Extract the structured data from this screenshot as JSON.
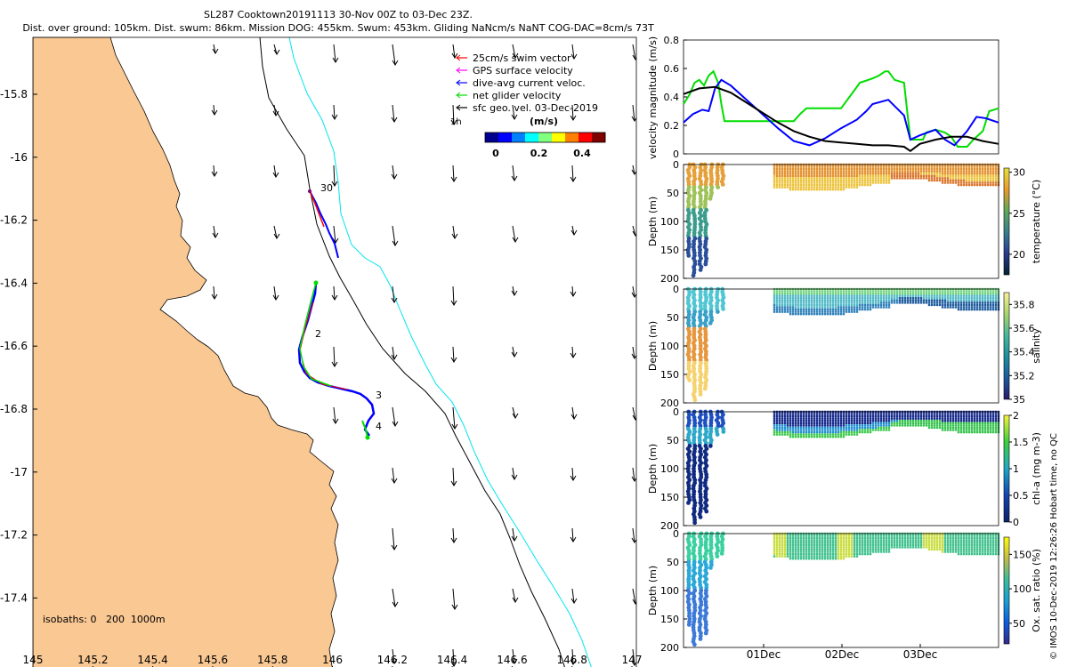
{
  "header": {
    "title_line1": "SL287 Cooktown20191113 30-Nov 00Z to 03-Dec 23Z.",
    "title_line2": "Dist. over ground: 105km. Dist. swum: 86km. Mission DOG: 455km. Swum: 453km. Gliding NaNcm/s NaNT COG-DAC=8cm/s 73T"
  },
  "map": {
    "x_ticks": [
      "145",
      "145.2",
      "145.4",
      "145.6",
      "145.8",
      "146",
      "146.2",
      "146.4",
      "146.6",
      "146.8",
      "147"
    ],
    "y_ticks": [
      "-15.8",
      "-16",
      "-16.2",
      "-16.4",
      "-16.6",
      "-16.8",
      "-17",
      "-17.2",
      "-17.4"
    ],
    "isobath_label": "isobaths: 0   200  1000m",
    "scale_label": "1h",
    "track_labels": [
      "30",
      "2",
      "3",
      "4"
    ],
    "colors": {
      "land": "#f9c893",
      "isobath_200": "#000000",
      "isobath_1000": "#00e5ee",
      "track_blue": "#0000ff",
      "track_red": "#ff0000",
      "track_green": "#00dd00"
    },
    "legend": {
      "items": [
        {
          "label": "25cm/s swim vector",
          "color": "#ff0000"
        },
        {
          "label": "GPS surface velocity",
          "color": "#ff00ff"
        },
        {
          "label": "dive-avg current veloc.",
          "color": "#0000ff"
        },
        {
          "label": "net glider velocity",
          "color": "#00dd00"
        },
        {
          "label": "sfc geo. vel. 03-Dec-2019",
          "color": "#000000"
        }
      ],
      "units": "(m/s)",
      "colorbar_ticks": [
        "0",
        "0.2",
        "0.4"
      ]
    }
  },
  "chart_data": [
    {
      "type": "line",
      "title": "",
      "ylabel": "velocity magnitude (m/s)",
      "ylim": [
        0,
        0.8
      ],
      "y_ticks": [
        "0",
        "0.2",
        "0.4",
        "0.6",
        "0.8"
      ],
      "series": [
        {
          "name": "net glider velocity",
          "color": "#00dd00",
          "x": [
            0,
            0.02,
            0.035,
            0.05,
            0.065,
            0.08,
            0.095,
            0.11,
            0.12,
            0.13,
            0.2,
            0.28,
            0.35,
            0.37,
            0.39,
            0.45,
            0.5,
            0.52,
            0.54,
            0.56,
            0.6,
            0.62,
            0.64,
            0.65,
            0.67,
            0.7,
            0.71,
            0.72,
            0.76,
            0.77,
            0.8,
            0.83,
            0.85,
            0.87,
            0.9,
            0.92,
            0.95,
            0.97,
            1.0
          ],
          "values": [
            0.35,
            0.42,
            0.5,
            0.52,
            0.48,
            0.55,
            0.58,
            0.5,
            0.35,
            0.23,
            0.23,
            0.23,
            0.23,
            0.28,
            0.32,
            0.32,
            0.32,
            0.38,
            0.44,
            0.5,
            0.53,
            0.55,
            0.58,
            0.58,
            0.52,
            0.5,
            0.3,
            0.1,
            0.1,
            0.15,
            0.17,
            0.15,
            0.12,
            0.05,
            0.05,
            0.1,
            0.16,
            0.3,
            0.32
          ]
        },
        {
          "name": "dive-avg current veloc.",
          "color": "#0000ff",
          "x": [
            0,
            0.03,
            0.06,
            0.08,
            0.09,
            0.1,
            0.12,
            0.15,
            0.2,
            0.25,
            0.3,
            0.35,
            0.4,
            0.45,
            0.5,
            0.55,
            0.58,
            0.6,
            0.65,
            0.7,
            0.72,
            0.75,
            0.8,
            0.83,
            0.86,
            0.9,
            0.93,
            0.96,
            1.0
          ],
          "values": [
            0.22,
            0.28,
            0.31,
            0.3,
            0.38,
            0.46,
            0.52,
            0.48,
            0.38,
            0.28,
            0.18,
            0.09,
            0.06,
            0.11,
            0.18,
            0.24,
            0.3,
            0.35,
            0.38,
            0.27,
            0.1,
            0.13,
            0.17,
            0.1,
            0.06,
            0.16,
            0.26,
            0.25,
            0.22
          ]
        },
        {
          "name": "sfc geo. vel.",
          "color": "#000000",
          "x": [
            0,
            0.05,
            0.1,
            0.15,
            0.2,
            0.25,
            0.3,
            0.35,
            0.4,
            0.45,
            0.5,
            0.55,
            0.6,
            0.65,
            0.7,
            0.72,
            0.75,
            0.8,
            0.85,
            0.9,
            0.95,
            1.0
          ],
          "values": [
            0.42,
            0.46,
            0.47,
            0.43,
            0.36,
            0.29,
            0.22,
            0.16,
            0.12,
            0.09,
            0.08,
            0.07,
            0.06,
            0.06,
            0.05,
            0.02,
            0.07,
            0.1,
            0.12,
            0.12,
            0.09,
            0.07
          ]
        }
      ]
    },
    {
      "type": "scatter",
      "ylabel": "Depth (m)",
      "colorbar_label": "temperature (°C)",
      "y_ticks": [
        "0",
        "50",
        "100",
        "150",
        "200"
      ],
      "colorbar_ticks": [
        "20",
        "25",
        "30"
      ],
      "clim": [
        17.5,
        30.5
      ]
    },
    {
      "type": "scatter",
      "ylabel": "Depth (m)",
      "colorbar_label": "salinity",
      "y_ticks": [
        "0",
        "50",
        "100",
        "150",
        "200"
      ],
      "colorbar_ticks": [
        "35",
        "35.2",
        "35.4",
        "35.6",
        "35.8"
      ],
      "clim": [
        35.0,
        35.9
      ]
    },
    {
      "type": "scatter",
      "ylabel": "Depth (m)",
      "colorbar_label": "chl-a (mg m-3)",
      "y_ticks": [
        "0",
        "50",
        "100",
        "150",
        "200"
      ],
      "colorbar_ticks": [
        "0",
        "0.5",
        "1",
        "1.5",
        "2"
      ],
      "clim": [
        0,
        2
      ]
    },
    {
      "type": "scatter",
      "ylabel": "Depth (m)",
      "colorbar_label": "Ox. sat. ratio (%)",
      "y_ticks": [
        "0",
        "50",
        "100",
        "150",
        "200"
      ],
      "colorbar_ticks": [
        "50",
        "100",
        "150"
      ],
      "clim": [
        20,
        175
      ],
      "x_ticks": [
        "01Dec",
        "02Dec",
        "03Dec"
      ]
    }
  ],
  "footer": {
    "side_note": "© IMOS 10-Dec-2019 12:26:26 Hobart time, no QC"
  }
}
